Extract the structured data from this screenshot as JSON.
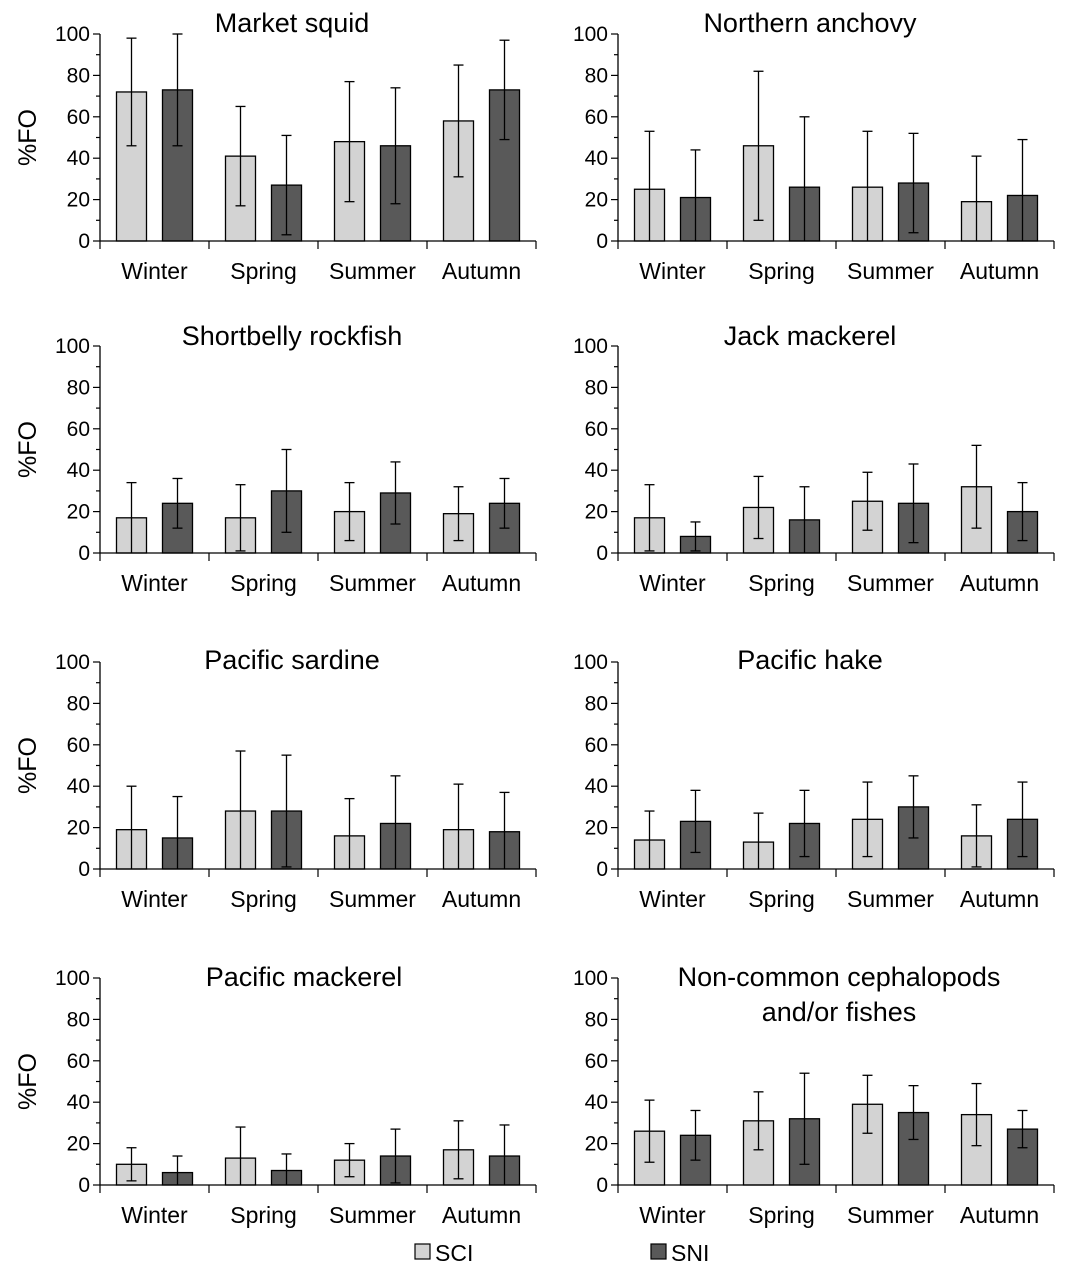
{
  "legend": {
    "items": [
      {
        "label": "SCI",
        "color": "#d3d3d3"
      },
      {
        "label": "SNI",
        "color": "#595959"
      }
    ]
  },
  "chart_data": [
    {
      "type": "bar",
      "title": "Market squid",
      "title_line2": "",
      "ylabel": "%FO",
      "ylim": [
        0,
        100
      ],
      "yticks": [
        "0",
        "20",
        "40",
        "60",
        "80",
        "100"
      ],
      "categories": [
        "Winter",
        "Spring",
        "Summer",
        "Autumn"
      ],
      "series": [
        {
          "name": "SCI",
          "values": [
            72,
            41,
            48,
            58
          ],
          "err": [
            26,
            24,
            29,
            27
          ]
        },
        {
          "name": "SNI",
          "values": [
            73,
            27,
            46,
            73
          ],
          "err": [
            27,
            24,
            28,
            24
          ]
        }
      ]
    },
    {
      "type": "bar",
      "title": "Northern anchovy",
      "title_line2": "",
      "ylabel": "",
      "ylim": [
        0,
        100
      ],
      "yticks": [
        "0",
        "20",
        "40",
        "60",
        "80",
        "100"
      ],
      "categories": [
        "Winter",
        "Spring",
        "Summer",
        "Autumn"
      ],
      "series": [
        {
          "name": "SCI",
          "values": [
            25,
            46,
            26,
            19
          ],
          "err": [
            28,
            36,
            27,
            22
          ]
        },
        {
          "name": "SNI",
          "values": [
            21,
            26,
            28,
            22
          ],
          "err": [
            23,
            34,
            24,
            27
          ]
        }
      ]
    },
    {
      "type": "bar",
      "title": "Shortbelly rockfish",
      "title_line2": "",
      "ylabel": "%FO",
      "ylim": [
        0,
        100
      ],
      "yticks": [
        "0",
        "20",
        "40",
        "60",
        "80",
        "100"
      ],
      "categories": [
        "Winter",
        "Spring",
        "Summer",
        "Autumn"
      ],
      "series": [
        {
          "name": "SCI",
          "values": [
            17,
            17,
            20,
            19
          ],
          "err": [
            17,
            16,
            14,
            13
          ]
        },
        {
          "name": "SNI",
          "values": [
            24,
            30,
            29,
            24
          ],
          "err": [
            12,
            20,
            15,
            12
          ]
        }
      ]
    },
    {
      "type": "bar",
      "title": "Jack mackerel",
      "title_line2": "",
      "ylabel": "",
      "ylim": [
        0,
        100
      ],
      "yticks": [
        "0",
        "20",
        "40",
        "60",
        "80",
        "100"
      ],
      "categories": [
        "Winter",
        "Spring",
        "Summer",
        "Autumn"
      ],
      "series": [
        {
          "name": "SCI",
          "values": [
            17,
            22,
            25,
            32
          ],
          "err": [
            16,
            15,
            14,
            20
          ]
        },
        {
          "name": "SNI",
          "values": [
            8,
            16,
            24,
            20
          ],
          "err": [
            7,
            16,
            19,
            14
          ]
        }
      ]
    },
    {
      "type": "bar",
      "title": "Pacific sardine",
      "title_line2": "",
      "ylabel": "%FO",
      "ylim": [
        0,
        100
      ],
      "yticks": [
        "0",
        "20",
        "40",
        "60",
        "80",
        "100"
      ],
      "categories": [
        "Winter",
        "Spring",
        "Summer",
        "Autumn"
      ],
      "series": [
        {
          "name": "SCI",
          "values": [
            19,
            28,
            16,
            19
          ],
          "err": [
            21,
            29,
            18,
            22
          ]
        },
        {
          "name": "SNI",
          "values": [
            15,
            28,
            22,
            18
          ],
          "err": [
            20,
            27,
            23,
            19
          ]
        }
      ]
    },
    {
      "type": "bar",
      "title": "Pacific hake",
      "title_line2": "",
      "ylabel": "",
      "ylim": [
        0,
        100
      ],
      "yticks": [
        "0",
        "20",
        "40",
        "60",
        "80",
        "100"
      ],
      "categories": [
        "Winter",
        "Spring",
        "Summer",
        "Autumn"
      ],
      "series": [
        {
          "name": "SCI",
          "values": [
            14,
            13,
            24,
            16
          ],
          "err": [
            14,
            14,
            18,
            15
          ]
        },
        {
          "name": "SNI",
          "values": [
            23,
            22,
            30,
            24
          ],
          "err": [
            15,
            16,
            15,
            18
          ]
        }
      ]
    },
    {
      "type": "bar",
      "title": "Pacific mackerel",
      "title_line2": "",
      "ylabel": "%FO",
      "ylim": [
        0,
        100
      ],
      "yticks": [
        "0",
        "20",
        "40",
        "60",
        "80",
        "100"
      ],
      "categories": [
        "Winter",
        "Spring",
        "Summer",
        "Autumn"
      ],
      "series": [
        {
          "name": "SCI",
          "values": [
            10,
            13,
            12,
            17
          ],
          "err": [
            8,
            15,
            8,
            14
          ]
        },
        {
          "name": "SNI",
          "values": [
            6,
            7,
            14,
            14
          ],
          "err": [
            8,
            8,
            13,
            15
          ]
        }
      ]
    },
    {
      "type": "bar",
      "title": "Non-common cephalopods",
      "title_line2": "and/or fishes",
      "ylabel": "",
      "ylim": [
        0,
        100
      ],
      "yticks": [
        "0",
        "20",
        "40",
        "60",
        "80",
        "100"
      ],
      "categories": [
        "Winter",
        "Spring",
        "Summer",
        "Autumn"
      ],
      "series": [
        {
          "name": "SCI",
          "values": [
            26,
            31,
            39,
            34
          ],
          "err": [
            15,
            14,
            14,
            15
          ]
        },
        {
          "name": "SNI",
          "values": [
            24,
            32,
            35,
            27
          ],
          "err": [
            12,
            22,
            13,
            9
          ]
        }
      ]
    }
  ]
}
